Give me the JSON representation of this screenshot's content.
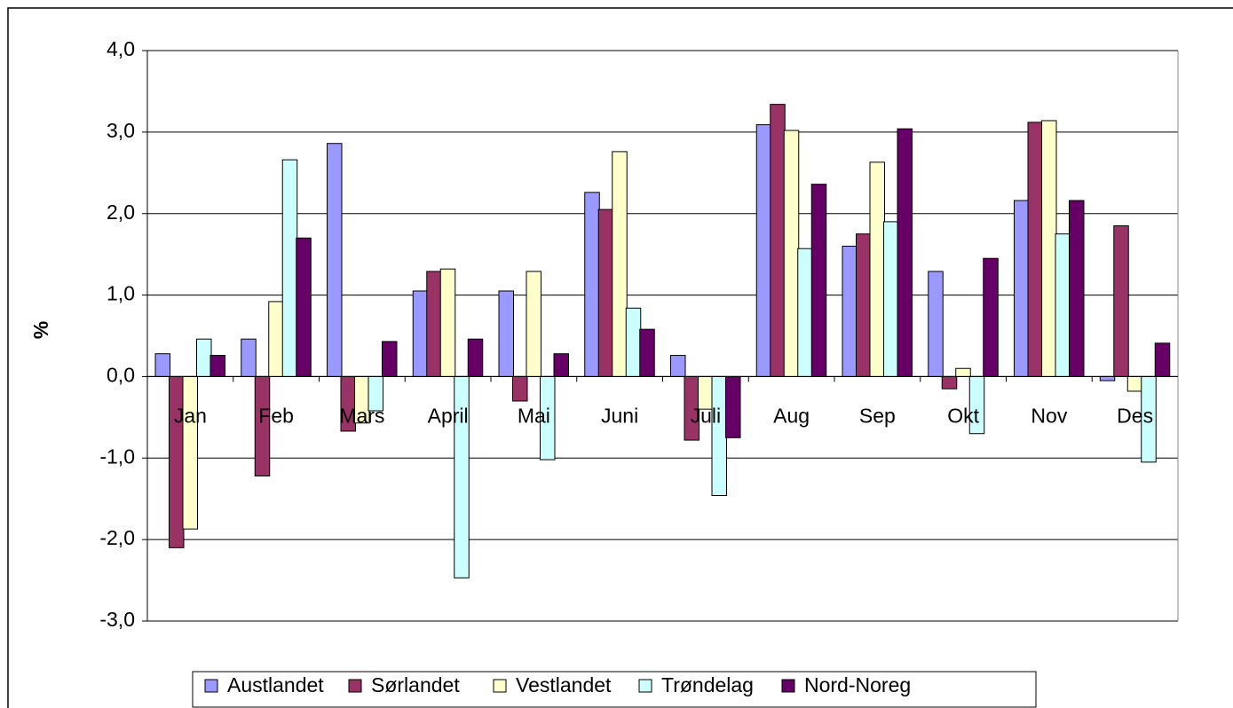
{
  "chart_data": {
    "type": "bar",
    "y_label": "%",
    "categories": [
      "Jan",
      "Feb",
      "Mars",
      "April",
      "Mai",
      "Juni",
      "Juli",
      "Aug",
      "Sep",
      "Okt",
      "Nov",
      "Des"
    ],
    "series": [
      {
        "name": "Austlandet",
        "color": "#9999ff",
        "values": [
          0.28,
          0.46,
          2.86,
          1.05,
          1.05,
          2.26,
          0.26,
          3.09,
          1.6,
          1.29,
          2.16,
          -0.05
        ]
      },
      {
        "name": "Sørlandet",
        "color": "#993366",
        "values": [
          -2.1,
          -1.22,
          -0.67,
          1.29,
          -0.3,
          2.05,
          -0.78,
          3.34,
          1.75,
          -0.15,
          3.12,
          1.85
        ]
      },
      {
        "name": "Vestlandet",
        "color": "#ffffcc",
        "values": [
          -1.87,
          0.92,
          -0.57,
          1.32,
          1.29,
          2.76,
          -0.4,
          3.02,
          2.63,
          0.1,
          3.14,
          -0.18
        ]
      },
      {
        "name": "Trøndelag",
        "color": "#ccffff",
        "values": [
          0.46,
          2.66,
          -0.42,
          -2.47,
          -1.02,
          0.84,
          -1.46,
          1.57,
          1.9,
          -0.7,
          1.75,
          -1.05
        ]
      },
      {
        "name": "Nord-Noreg",
        "color": "#660066",
        "values": [
          0.26,
          1.7,
          0.43,
          0.46,
          0.28,
          0.58,
          -0.75,
          2.36,
          3.04,
          1.45,
          2.16,
          0.41
        ]
      }
    ],
    "ylim": [
      -3,
      4
    ],
    "yticks": [
      {
        "value": -3,
        "label": "-3,0"
      },
      {
        "value": -2,
        "label": "-2,0"
      },
      {
        "value": -1,
        "label": "-1,0"
      },
      {
        "value": 0,
        "label": "0,0"
      },
      {
        "value": 1,
        "label": "1,0"
      },
      {
        "value": 2,
        "label": "2,0"
      },
      {
        "value": 3,
        "label": "3,0"
      },
      {
        "value": 4,
        "label": "4,0"
      }
    ],
    "grid": true,
    "legend": "bottom"
  }
}
